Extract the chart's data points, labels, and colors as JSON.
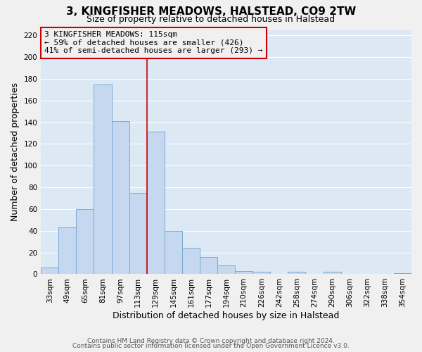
{
  "title": "3, KINGFISHER MEADOWS, HALSTEAD, CO9 2TW",
  "subtitle": "Size of property relative to detached houses in Halstead",
  "xlabel": "Distribution of detached houses by size in Halstead",
  "ylabel": "Number of detached properties",
  "bar_labels": [
    "33sqm",
    "49sqm",
    "65sqm",
    "81sqm",
    "97sqm",
    "113sqm",
    "129sqm",
    "145sqm",
    "161sqm",
    "177sqm",
    "194sqm",
    "210sqm",
    "226sqm",
    "242sqm",
    "258sqm",
    "274sqm",
    "290sqm",
    "306sqm",
    "322sqm",
    "338sqm",
    "354sqm"
  ],
  "bar_values": [
    6,
    43,
    60,
    175,
    141,
    75,
    131,
    40,
    24,
    16,
    8,
    3,
    2,
    0,
    2,
    0,
    2,
    0,
    0,
    0,
    1
  ],
  "bar_color": "#c5d8f0",
  "bar_edgecolor": "#7aaad4",
  "vline_x": 5.5,
  "vline_color": "#cc0000",
  "annotation_box_text": "3 KINGFISHER MEADOWS: 115sqm\n← 59% of detached houses are smaller (426)\n41% of semi-detached houses are larger (293) →",
  "annotation_box_color": "#cc0000",
  "ylim": [
    0,
    225
  ],
  "yticks": [
    0,
    20,
    40,
    60,
    80,
    100,
    120,
    140,
    160,
    180,
    200,
    220
  ],
  "footer_line1": "Contains HM Land Registry data © Crown copyright and database right 2024.",
  "footer_line2": "Contains public sector information licensed under the Open Government Licence v3.0.",
  "plot_bg_color": "#dce9f5",
  "fig_bg_color": "#f0f0f0",
  "grid_color": "#ffffff",
  "title_fontsize": 11,
  "subtitle_fontsize": 9,
  "axis_label_fontsize": 9,
  "tick_fontsize": 7.5,
  "annotation_fontsize": 8,
  "footer_fontsize": 6.5
}
